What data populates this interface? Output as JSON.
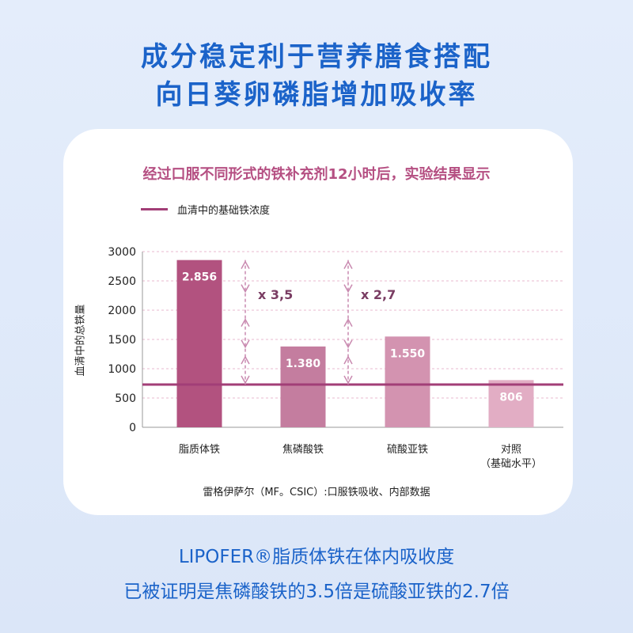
{
  "header": {
    "line1": "成分稳定利于营养膳食搭配",
    "line2": "向日葵卵磷脂增加吸收率"
  },
  "footer": {
    "line1": "LIPOFER®脂质体铁在体内吸收度",
    "line2": "已被证明是焦磷酸铁的3.5倍是硫酸亚铁的2.7倍"
  },
  "colors": {
    "accent_blue": "#1b63c9",
    "chart_title": "#b54f82",
    "baseline": "#a23e77",
    "arrow": "#c98ab0"
  },
  "chart_data": {
    "type": "bar",
    "title": "经过口服不同形式的铁补充剂12小时后，实验结果显示",
    "ylabel": "血清中的总铁量",
    "xlabel": "",
    "ylim": [
      0,
      3000
    ],
    "yticks": [
      0,
      500,
      1000,
      1500,
      2000,
      2500,
      3000
    ],
    "grid": true,
    "categories": [
      "脂质体铁",
      "焦磷酸铁",
      "硫酸亚铁",
      "对照|（基础水平）"
    ],
    "values": [
      2856,
      1380,
      1550,
      806
    ],
    "data_labels": [
      "2.856",
      "1.380",
      "1.550",
      "806"
    ],
    "bar_colors": [
      "#b2527f",
      "#c47d9f",
      "#d393b0",
      "#e2adc4"
    ],
    "reference_line": {
      "name": "血清中的基础铁浓度",
      "value": 730
    },
    "annotations": [
      {
        "text": "x 3,5",
        "from": 2856,
        "to": 730
      },
      {
        "text": "x 2,7",
        "from": 2856,
        "to": 730
      }
    ],
    "source": "雷格伊萨尔（MF。CSIC）:口服铁吸收、内部数据"
  }
}
